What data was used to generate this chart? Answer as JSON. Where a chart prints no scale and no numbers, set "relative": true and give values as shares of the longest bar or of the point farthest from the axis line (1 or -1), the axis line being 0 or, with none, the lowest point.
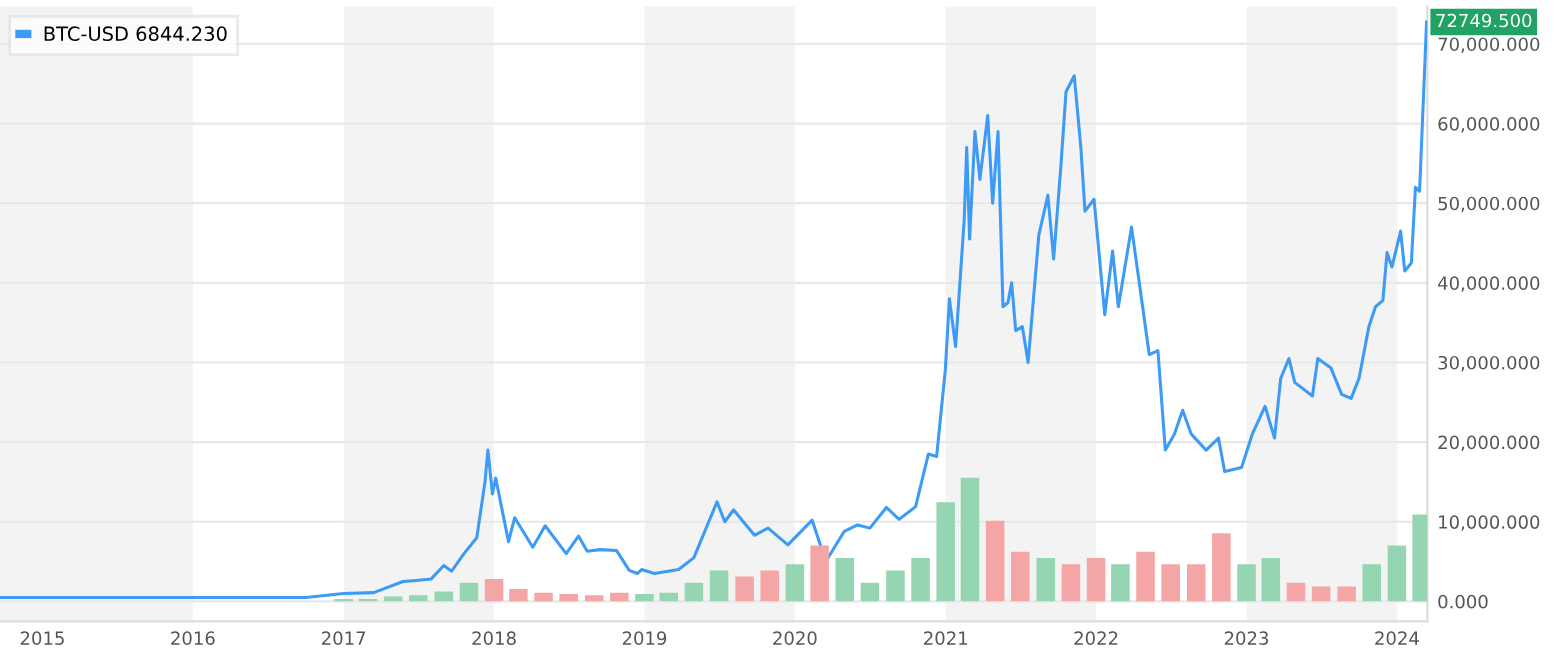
{
  "chart_data": [
    {
      "type": "line",
      "legend": "top left",
      "grid": "y",
      "marker": "none",
      "line_style": "solid",
      "xlim": [
        "2014-09-20",
        "2024-03-15"
      ],
      "xticks": [
        {
          "value": "2015-01-01",
          "label": "2015"
        },
        {
          "value": "2016-01-01",
          "label": "2016"
        },
        {
          "value": "2017-01-01",
          "label": "2017"
        },
        {
          "value": "2018-01-01",
          "label": "2018"
        },
        {
          "value": "2019-01-01",
          "label": "2019"
        },
        {
          "value": "2020-01-01",
          "label": "2020"
        },
        {
          "value": "2021-01-01",
          "label": "2021"
        },
        {
          "value": "2022-01-01",
          "label": "2022"
        },
        {
          "value": "2023-01-01",
          "label": "2023"
        },
        {
          "value": "2024-01-01",
          "label": "2024"
        }
      ],
      "ylim": [
        -2500,
        74700
      ],
      "yticks": [
        {
          "value": 0,
          "label": "0.000"
        },
        {
          "value": 10000,
          "label": "10,000.000"
        },
        {
          "value": 20000,
          "label": "20,000.000"
        },
        {
          "value": 30000,
          "label": "30,000.000"
        },
        {
          "value": 40000,
          "label": "40,000.000"
        },
        {
          "value": 50000,
          "label": "50,000.000"
        },
        {
          "value": 60000,
          "label": "60,000.000"
        },
        {
          "value": 70000,
          "label": "70,000.000"
        }
      ],
      "bands": [
        {
          "axis": "x",
          "from": "2014-09-20",
          "to": "2016-01-01",
          "color": "#f3f3f3"
        },
        {
          "axis": "x",
          "from": "2017-01-01",
          "to": "2018-01-01",
          "color": "#f3f3f3"
        },
        {
          "axis": "x",
          "from": "2019-01-01",
          "to": "2020-01-01",
          "color": "#f3f3f3"
        },
        {
          "axis": "x",
          "from": "2021-01-01",
          "to": "2022-01-01",
          "color": "#f3f3f3"
        },
        {
          "axis": "x",
          "from": "2023-01-01",
          "to": "2024-01-01",
          "color": "#f3f3f3"
        }
      ],
      "annotations": [
        {
          "text": "72749.500",
          "x": "2024-03-13",
          "y": 72749.5
        }
      ],
      "series": [
        {
          "name": "BTC-USD 6844.230",
          "color": "#3d9bf5",
          "x": [
            "2014-09-20",
            "2015-01-15",
            "2015-07-01",
            "2015-12-01",
            "2016-06-15",
            "2016-10-01",
            "2017-01-01",
            "2017-03-15",
            "2017-05-25",
            "2017-06-20",
            "2017-08-01",
            "2017-09-01",
            "2017-09-20",
            "2017-10-20",
            "2017-11-20",
            "2017-12-10",
            "2017-12-17",
            "2017-12-28",
            "2018-01-05",
            "2018-02-05",
            "2018-02-20",
            "2018-03-10",
            "2018-04-05",
            "2018-05-05",
            "2018-06-25",
            "2018-07-25",
            "2018-08-15",
            "2018-09-15",
            "2018-10-25",
            "2018-11-25",
            "2018-12-15",
            "2018-12-25",
            "2019-01-25",
            "2019-03-25",
            "2019-05-01",
            "2019-06-26",
            "2019-07-15",
            "2019-08-05",
            "2019-09-25",
            "2019-10-28",
            "2019-12-15",
            "2020-02-12",
            "2020-03-16",
            "2020-04-30",
            "2020-06-01",
            "2020-07-01",
            "2020-08-10",
            "2020-09-10",
            "2020-10-20",
            "2020-11-20",
            "2020-12-10",
            "2020-12-31",
            "2021-01-10",
            "2021-01-25",
            "2021-02-15",
            "2021-02-21",
            "2021-02-28",
            "2021-03-13",
            "2021-03-25",
            "2021-04-13",
            "2021-04-25",
            "2021-05-08",
            "2021-05-20",
            "2021-06-01",
            "2021-06-10",
            "2021-06-20",
            "2021-07-06",
            "2021-07-20",
            "2021-08-15",
            "2021-09-06",
            "2021-09-20",
            "2021-10-08",
            "2021-10-20",
            "2021-11-09",
            "2021-11-25",
            "2021-12-05",
            "2021-12-27",
            "2022-01-22",
            "2022-02-10",
            "2022-02-24",
            "2022-03-28",
            "2022-05-10",
            "2022-05-31",
            "2022-06-18",
            "2022-07-10",
            "2022-07-30",
            "2022-08-20",
            "2022-09-25",
            "2022-10-25",
            "2022-11-09",
            "2022-12-20",
            "2023-01-15",
            "2023-02-15",
            "2023-03-10",
            "2023-03-25",
            "2023-04-14",
            "2023-04-28",
            "2023-06-10",
            "2023-06-23",
            "2023-07-25",
            "2023-08-20",
            "2023-09-12",
            "2023-10-01",
            "2023-10-25",
            "2023-11-10",
            "2023-11-28",
            "2023-12-08",
            "2023-12-20",
            "2024-01-10",
            "2024-01-20",
            "2024-02-05",
            "2024-02-15",
            "2024-02-25",
            "2024-03-13"
          ],
          "values": [
            500,
            500,
            500,
            500,
            500,
            500,
            1000,
            1100,
            2500,
            2600,
            2800,
            4500,
            3800,
            6000,
            8000,
            15000,
            19000,
            13500,
            15500,
            7500,
            10500,
            9000,
            6800,
            9500,
            6000,
            8200,
            6300,
            6500,
            6400,
            3900,
            3500,
            4000,
            3500,
            4000,
            5500,
            12500,
            10000,
            11500,
            8300,
            9200,
            7100,
            10200,
            5000,
            8800,
            9600,
            9200,
            11800,
            10300,
            11900,
            18500,
            18200,
            29000,
            38000,
            32000,
            48000,
            57000,
            45500,
            59000,
            53000,
            61000,
            50000,
            59000,
            37000,
            37500,
            40000,
            34000,
            34500,
            30000,
            46000,
            51000,
            43000,
            55000,
            64000,
            66000,
            57000,
            49000,
            50500,
            36000,
            44000,
            37000,
            47000,
            31000,
            31500,
            19000,
            21000,
            24000,
            21000,
            19000,
            20500,
            16300,
            16800,
            21000,
            24500,
            20500,
            28000,
            30500,
            27500,
            25800,
            30500,
            29300,
            26000,
            25500,
            28000,
            34500,
            37000,
            37800,
            43800,
            42000,
            46500,
            41500,
            42500,
            52000,
            51500,
            72749.5
          ]
        }
      ]
    },
    {
      "type": "bar",
      "relative": true,
      "xlim": [
        "2014-09-20",
        "2024-03-15"
      ],
      "x": [
        "2017-01-01",
        "2017-03-01",
        "2017-05-01",
        "2017-07-01",
        "2017-09-01",
        "2017-11-01",
        "2018-01-01",
        "2018-03-01",
        "2018-05-01",
        "2018-07-01",
        "2018-09-01",
        "2018-11-01",
        "2019-01-01",
        "2019-03-01",
        "2019-05-01",
        "2019-07-01",
        "2019-09-01",
        "2019-11-01",
        "2020-01-01",
        "2020-03-01",
        "2020-05-01",
        "2020-07-01",
        "2020-09-01",
        "2020-11-01",
        "2021-01-01",
        "2021-03-01",
        "2021-05-01",
        "2021-07-01",
        "2021-09-01",
        "2021-11-01",
        "2022-01-01",
        "2022-03-01",
        "2022-05-01",
        "2022-07-01",
        "2022-09-01",
        "2022-11-01",
        "2023-01-01",
        "2023-03-01",
        "2023-05-01",
        "2023-07-01",
        "2023-09-01",
        "2023-11-01",
        "2024-01-01",
        "2024-03-01"
      ],
      "values": [
        0.02,
        0.02,
        0.04,
        0.05,
        0.08,
        0.15,
        0.18,
        0.1,
        0.07,
        0.06,
        0.05,
        0.07,
        0.06,
        0.07,
        0.15,
        0.25,
        0.2,
        0.25,
        0.3,
        0.45,
        0.35,
        0.15,
        0.25,
        0.35,
        0.8,
        1.0,
        0.65,
        0.4,
        0.35,
        0.3,
        0.35,
        0.3,
        0.4,
        0.3,
        0.3,
        0.55,
        0.3,
        0.35,
        0.15,
        0.12,
        0.12,
        0.3,
        0.45,
        0.7
      ],
      "colors": [
        "#95d5b2",
        "#95d5b2",
        "#95d5b2",
        "#95d5b2",
        "#95d5b2",
        "#95d5b2",
        "#f4a6a6",
        "#f4a6a6",
        "#f4a6a6",
        "#f4a6a6",
        "#f4a6a6",
        "#f4a6a6",
        "#95d5b2",
        "#95d5b2",
        "#95d5b2",
        "#95d5b2",
        "#f4a6a6",
        "#f4a6a6",
        "#95d5b2",
        "#f4a6a6",
        "#95d5b2",
        "#95d5b2",
        "#95d5b2",
        "#95d5b2",
        "#95d5b2",
        "#95d5b2",
        "#f4a6a6",
        "#f4a6a6",
        "#95d5b2",
        "#f4a6a6",
        "#f4a6a6",
        "#95d5b2",
        "#f4a6a6",
        "#f4a6a6",
        "#f4a6a6",
        "#f4a6a6",
        "#95d5b2",
        "#95d5b2",
        "#f4a6a6",
        "#f4a6a6",
        "#f4a6a6",
        "#95d5b2",
        "#95d5b2",
        "#95d5b2"
      ]
    }
  ]
}
